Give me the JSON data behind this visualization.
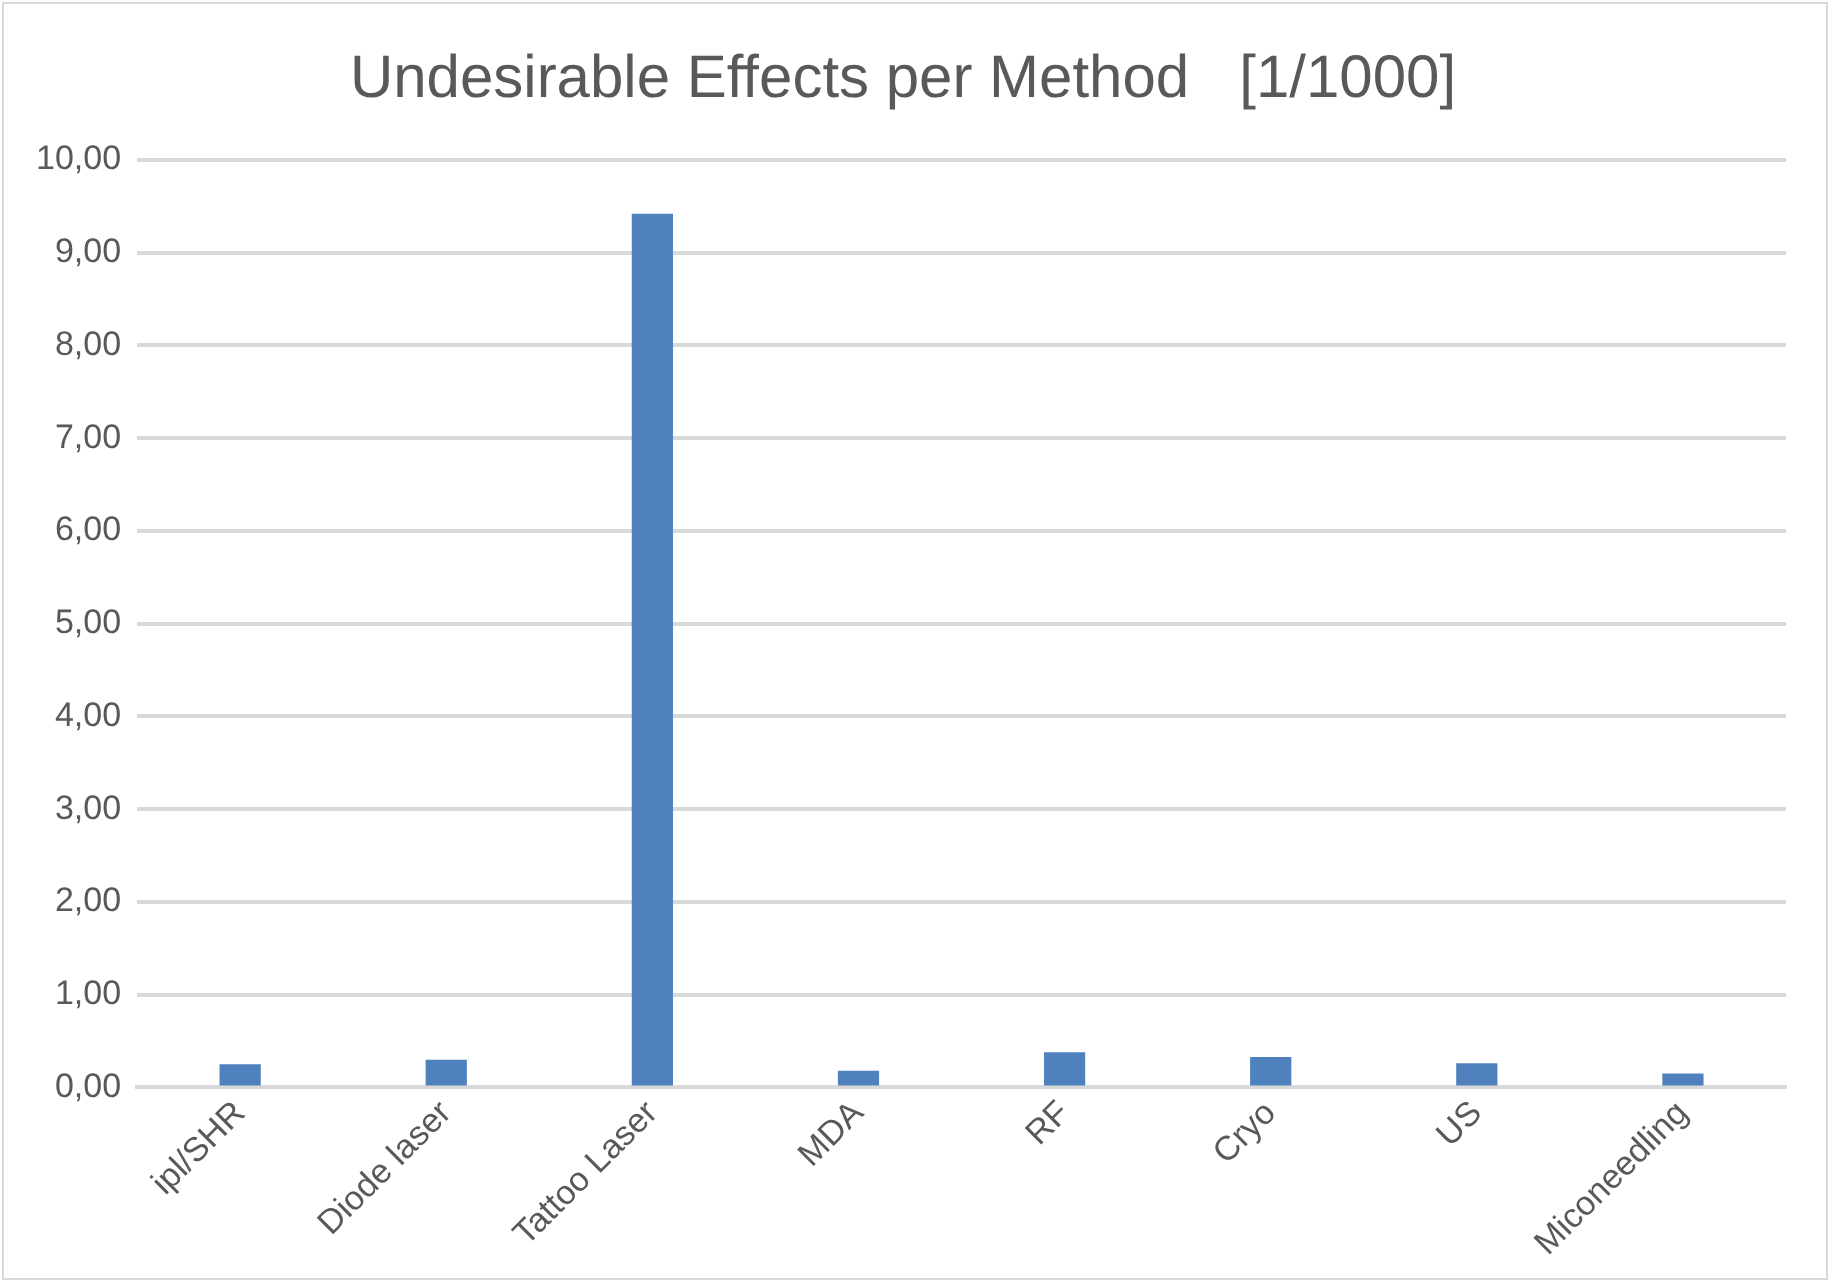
{
  "chart_data": {
    "type": "bar",
    "title": "Undesirable Effects per Method   [1/1000]",
    "categories": [
      "ipl/SHR",
      "Diode laser",
      "Tattoo Laser",
      "MDA",
      "RF",
      "Cryo",
      "US",
      "Miconeedling"
    ],
    "values": [
      0.25,
      0.3,
      9.42,
      0.18,
      0.38,
      0.33,
      0.26,
      0.15
    ],
    "color": "#4f81bd",
    "ylim": [
      0,
      10
    ],
    "yticks": [
      {
        "value": 0,
        "label": "0,00"
      },
      {
        "value": 1,
        "label": "1,00"
      },
      {
        "value": 2,
        "label": "2,00"
      },
      {
        "value": 3,
        "label": "3,00"
      },
      {
        "value": 4,
        "label": "4,00"
      },
      {
        "value": 5,
        "label": "5,00"
      },
      {
        "value": 6,
        "label": "6,00"
      },
      {
        "value": 7,
        "label": "7,00"
      },
      {
        "value": 8,
        "label": "8,00"
      },
      {
        "value": 9,
        "label": "9,00"
      },
      {
        "value": 10,
        "label": "10,00"
      }
    ],
    "grid": "y"
  }
}
